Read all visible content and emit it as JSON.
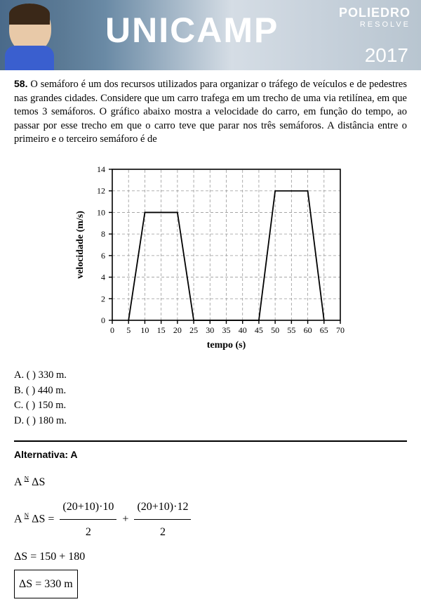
{
  "header": {
    "title": "UNICAMP",
    "logo1": "POLIEDRO",
    "logo2": "RESOLVE",
    "year": "2017"
  },
  "question": {
    "num": "58.",
    "text": "O semáforo é um dos recursos utilizados para organizar o tráfego de veículos e de pedestres nas grandes cidades. Considere que um carro trafega em um trecho de uma via retilínea, em que temos 3 semáforos. O gráfico abaixo mostra a velocidade do carro, em função do tempo, ao passar por esse trecho em que o carro teve que parar nos três semáforos. A distância entre o primeiro e o terceiro semáforo é de"
  },
  "chart": {
    "type": "line",
    "x": {
      "min": 0,
      "max": 70,
      "ticks": [
        0,
        5,
        10,
        15,
        20,
        25,
        30,
        35,
        40,
        45,
        50,
        55,
        60,
        65,
        70
      ],
      "label": "tempo (s)"
    },
    "y": {
      "min": 0,
      "max": 14,
      "ticks": [
        0,
        2,
        4,
        6,
        8,
        10,
        12,
        14
      ],
      "label": "velocidade (m/s)"
    },
    "series": [
      [
        5,
        0
      ],
      [
        10,
        10
      ],
      [
        20,
        10
      ],
      [
        25,
        0
      ],
      [
        45,
        0
      ],
      [
        50,
        12
      ],
      [
        60,
        12
      ],
      [
        65,
        0
      ]
    ],
    "axis_color": "#000",
    "grid_color": "#999",
    "grid_dash": "4,3",
    "line_color": "#000",
    "line_width": 1.8,
    "tick_fontsize": 12,
    "label_fontsize": 14
  },
  "options": {
    "A": "A. (   )  330 m.",
    "B": "B. (   )  440 m.",
    "C": "C. (   )  150 m.",
    "D": "D. (   )  180 m."
  },
  "answer": {
    "label": "Alternativa: A"
  },
  "work": {
    "line1_lhs": "A",
    "line1_mid": "ΔS",
    "line2_lhs": "A",
    "line2_mid": "ΔS =",
    "frac1_num": "(20+10)·10",
    "frac1_den": "2",
    "plus": "+",
    "frac2_num": "(20+10)·12",
    "frac2_den": "2",
    "line3": "ΔS = 150 + 180",
    "line4": "ΔS = 330 m"
  }
}
